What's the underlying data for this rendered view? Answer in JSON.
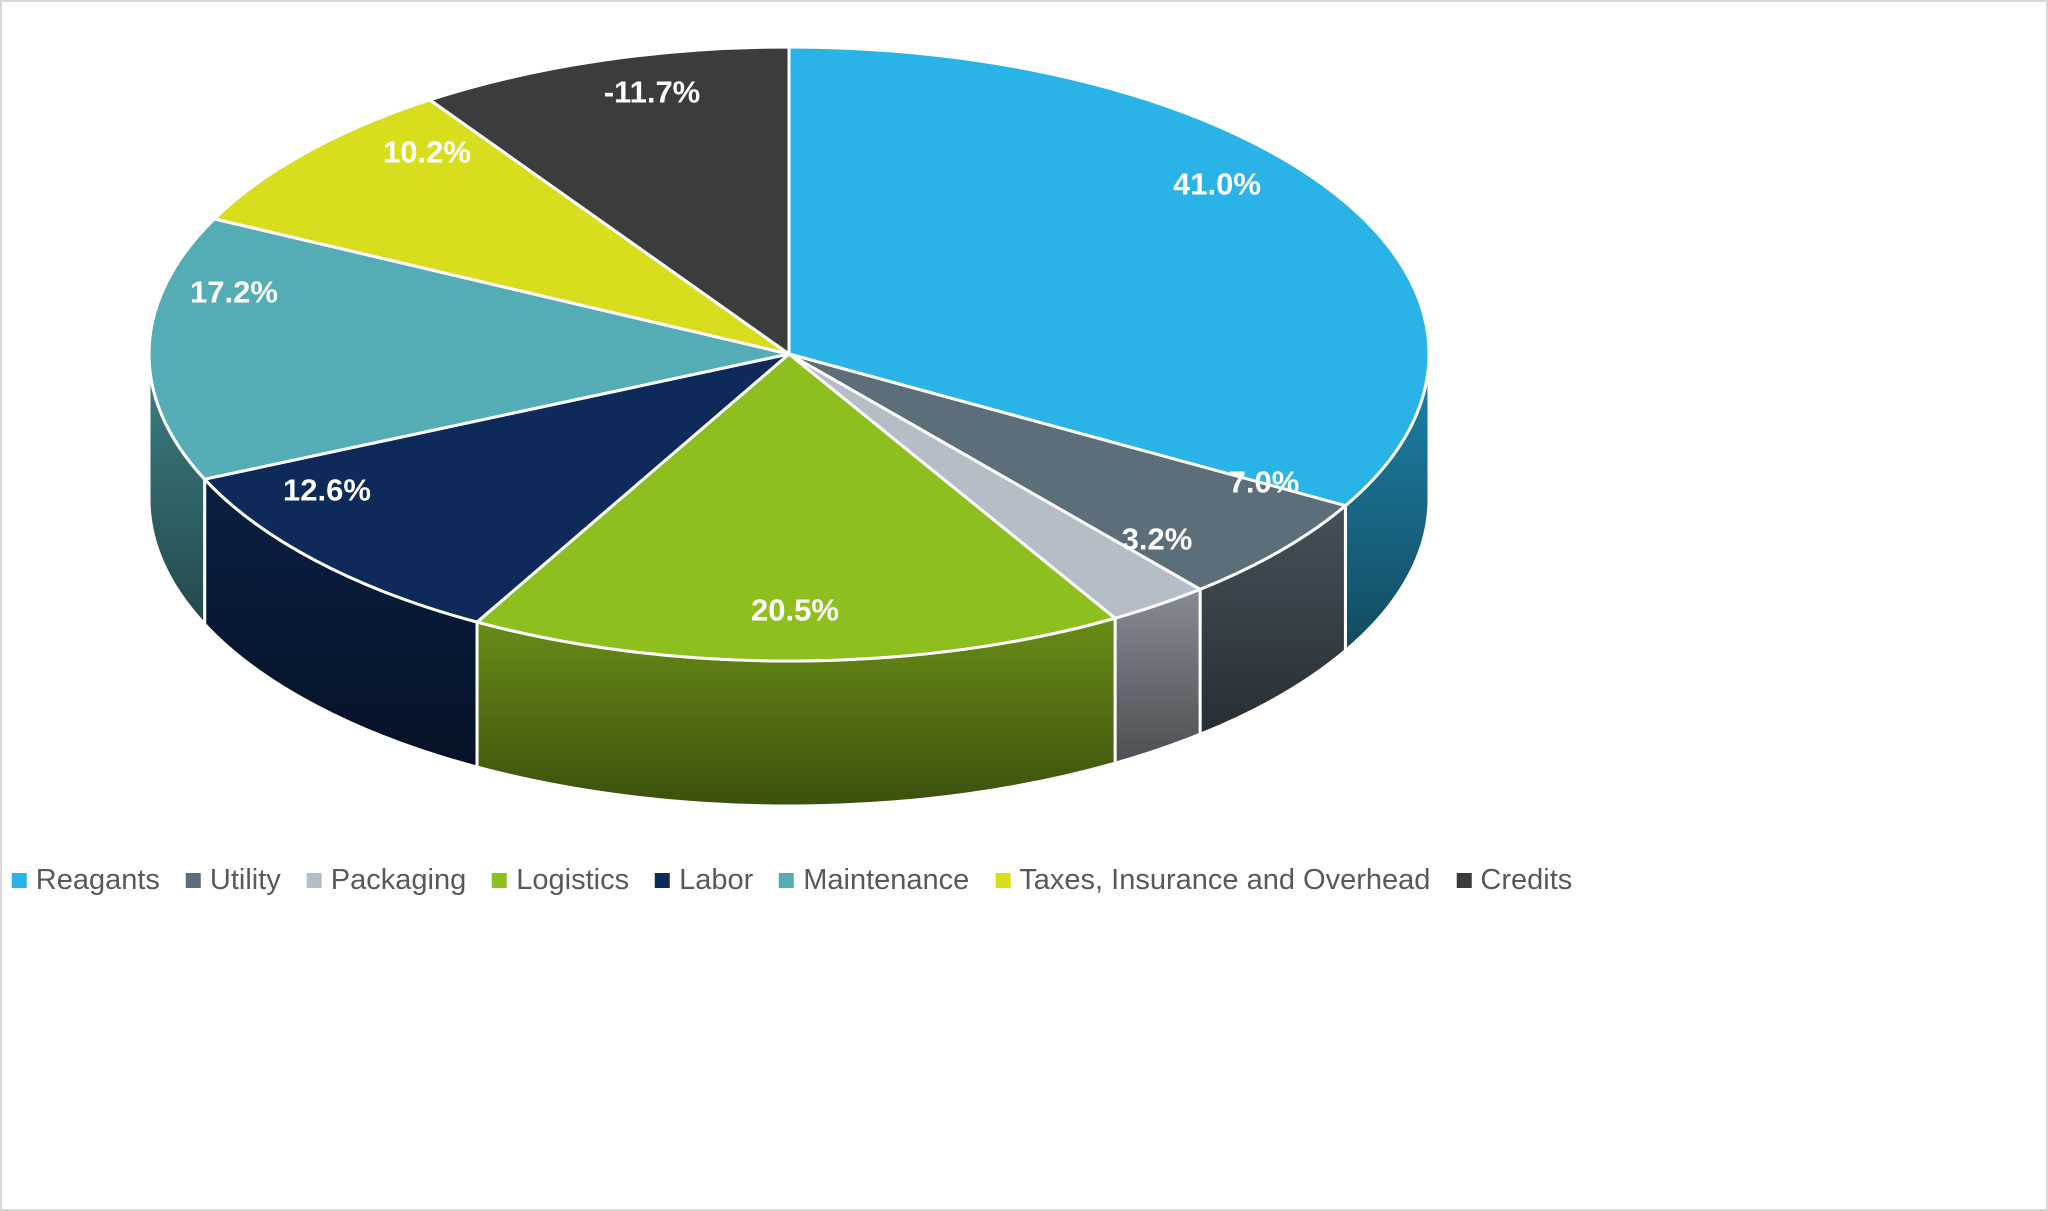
{
  "chart_data": {
    "type": "pie",
    "style": "3d",
    "title": "",
    "direction": "clockwise",
    "start_angle_deg": 0,
    "legend_position": "bottom",
    "label_color": "#FFFFFF",
    "legend_text_color": "#595959",
    "slices": [
      {
        "label": "Reagants",
        "value": 41.0,
        "display": "41.0%",
        "color": "#2AB3E6"
      },
      {
        "label": "Utility",
        "value": 7.0,
        "display": "7.0%",
        "color": "#5C6E79"
      },
      {
        "label": "Packaging",
        "value": 3.2,
        "display": "3.2%",
        "color": "#B5BDC6"
      },
      {
        "label": "Logistics",
        "value": 20.5,
        "display": "20.5%",
        "color": "#8DBF1F"
      },
      {
        "label": "Labor",
        "value": 12.6,
        "display": "12.6%",
        "color": "#0E2A5A"
      },
      {
        "label": "Maintenance",
        "value": 17.2,
        "display": "17.2%",
        "color": "#54ADB4"
      },
      {
        "label": "Taxes, Insurance and Overhead",
        "value": 10.2,
        "display": "10.2%",
        "color": "#D8DD1E"
      },
      {
        "label": "Credits",
        "value": -11.7,
        "display": "-11.7%",
        "color": "#3A3D3C"
      }
    ]
  }
}
